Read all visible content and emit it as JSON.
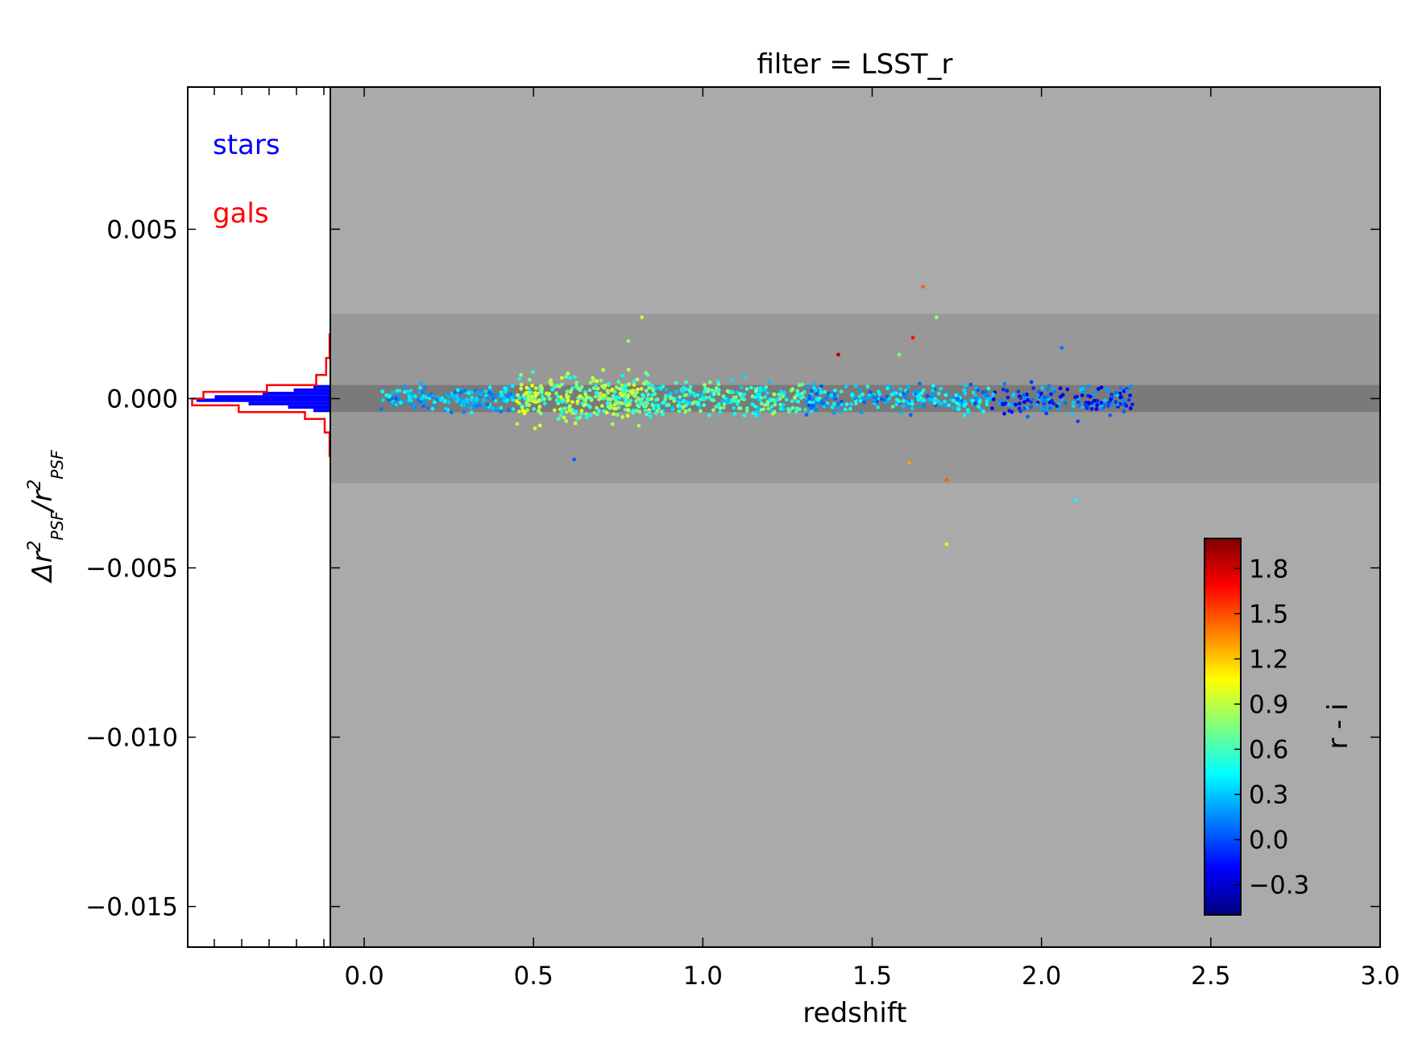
{
  "chart_data": {
    "type": "scatter",
    "title": "filter = LSST_r",
    "xlabel": "redshift",
    "ylabel": "Δr²_PSF / r²_PSF",
    "xlim": [
      -0.1,
      3.0
    ],
    "ylim": [
      -0.0162,
      0.0092
    ],
    "x_ticks": [
      "0.0",
      "0.5",
      "1.0",
      "1.5",
      "2.0",
      "2.5",
      "3.0"
    ],
    "y_ticks": [
      "0.005",
      "0.000",
      "−0.005",
      "−0.010",
      "−0.015"
    ],
    "y_tick_values": [
      0.005,
      0.0,
      -0.005,
      -0.01,
      -0.015
    ],
    "bands": [
      {
        "name": "outer",
        "ymin": -0.0025,
        "ymax": 0.0025,
        "color": "#989898"
      },
      {
        "name": "inner",
        "ymin": -0.0004,
        "ymax": 0.0004,
        "color": "#7a7a7a"
      }
    ],
    "background_color": "#aaaaaa",
    "colorbar": {
      "label": "r - i",
      "range": [
        -0.5,
        2.0
      ],
      "ticks": [
        "1.8",
        "1.5",
        "1.2",
        "0.9",
        "0.6",
        "0.3",
        "0.0",
        "−0.3"
      ],
      "tick_values": [
        1.8,
        1.5,
        1.2,
        0.9,
        0.6,
        0.3,
        0.0,
        -0.3
      ],
      "colormap": "jet"
    },
    "segments": [
      {
        "x0": 0.05,
        "x1": 0.45,
        "cmin": 0.05,
        "cmax": 0.5,
        "spread": 0.00018,
        "count": 180
      },
      {
        "x0": 0.45,
        "x1": 0.85,
        "cmin": 0.45,
        "cmax": 1.05,
        "spread": 0.00035,
        "count": 320
      },
      {
        "x0": 0.85,
        "x1": 1.3,
        "cmin": 0.25,
        "cmax": 0.85,
        "spread": 0.00022,
        "count": 260
      },
      {
        "x0": 1.3,
        "x1": 1.85,
        "cmin": 0.0,
        "cmax": 0.55,
        "spread": 0.0002,
        "count": 240
      },
      {
        "x0": 1.85,
        "x1": 2.27,
        "cmin": -0.3,
        "cmax": 0.35,
        "spread": 0.00022,
        "count": 170
      }
    ],
    "outliers": [
      {
        "x": 0.82,
        "y": 0.0024,
        "c": 0.9
      },
      {
        "x": 1.65,
        "y": 0.0033,
        "c": 1.45
      },
      {
        "x": 1.69,
        "y": 0.0024,
        "c": 0.8
      },
      {
        "x": 1.62,
        "y": 0.0018,
        "c": 1.65
      },
      {
        "x": 1.4,
        "y": 0.0013,
        "c": 1.9
      },
      {
        "x": 1.72,
        "y": -0.0024,
        "c": 1.45
      },
      {
        "x": 1.61,
        "y": -0.0019,
        "c": 1.3
      },
      {
        "x": 2.1,
        "y": -0.003,
        "c": 0.45
      },
      {
        "x": 1.72,
        "y": -0.0043,
        "c": 1.1
      },
      {
        "x": 2.06,
        "y": 0.0015,
        "c": 0.1
      },
      {
        "x": 0.62,
        "y": -0.0018,
        "c": 0.05
      },
      {
        "x": 0.78,
        "y": 0.0017,
        "c": 0.8
      },
      {
        "x": 1.58,
        "y": 0.0013,
        "c": 0.7
      }
    ],
    "histogram": {
      "legend": [
        {
          "label": "stars",
          "color": "#0000ff"
        },
        {
          "label": "gals",
          "color": "#ff0000"
        }
      ],
      "x_ticks_unlabeled": 5,
      "stars_bins": [
        {
          "y0": 0.0004,
          "y1": 0.0003,
          "w": 0.12
        },
        {
          "y0": 0.0003,
          "y1": 0.0002,
          "w": 0.26
        },
        {
          "y0": 0.0002,
          "y1": 0.0001,
          "w": 0.48
        },
        {
          "y0": 0.0001,
          "y1": 0.0,
          "w": 0.82
        },
        {
          "y0": 0.0,
          "y1": -0.0001,
          "w": 0.95
        },
        {
          "y0": -0.0001,
          "y1": -0.0002,
          "w": 0.58
        },
        {
          "y0": -0.0002,
          "y1": -0.0003,
          "w": 0.3
        },
        {
          "y0": -0.0003,
          "y1": -0.0004,
          "w": 0.12
        }
      ],
      "gals_bins": [
        {
          "y0": 0.0019,
          "y1": 0.0012,
          "w": 0.005
        },
        {
          "y0": 0.0012,
          "y1": 0.0007,
          "w": 0.03
        },
        {
          "y0": 0.0007,
          "y1": 0.0004,
          "w": 0.1
        },
        {
          "y0": 0.0004,
          "y1": 0.0002,
          "w": 0.45
        },
        {
          "y0": 0.0002,
          "y1": 0.0,
          "w": 0.9
        },
        {
          "y0": 0.0,
          "y1": -0.0002,
          "w": 0.98
        },
        {
          "y0": -0.0002,
          "y1": -0.0004,
          "w": 0.65
        },
        {
          "y0": -0.0004,
          "y1": -0.0006,
          "w": 0.18
        },
        {
          "y0": -0.0006,
          "y1": -0.001,
          "w": 0.04
        },
        {
          "y0": -0.001,
          "y1": -0.0017,
          "w": 0.005
        }
      ]
    }
  }
}
